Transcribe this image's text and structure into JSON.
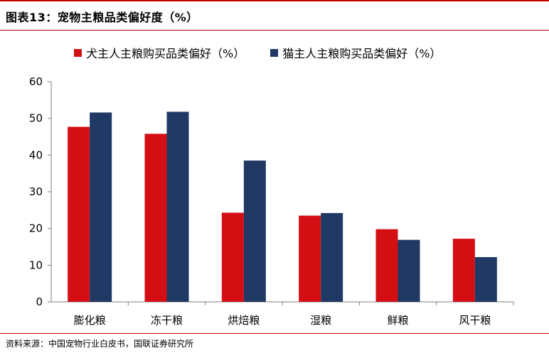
{
  "figure_title": "图表13：宠物主粮品类偏好度（%）",
  "source": "资料来源：中国宠物行业白皮书，国联证券研究所",
  "colors": {
    "dog": "#d40f14",
    "cat": "#1f3864",
    "accent_rule": "#c00000"
  },
  "chart_data": {
    "type": "bar",
    "title": "",
    "xlabel": "",
    "ylabel": "",
    "ylim": [
      0,
      60
    ],
    "yticks": [
      0,
      10,
      20,
      30,
      40,
      50,
      60
    ],
    "grid": false,
    "legend_position": "top",
    "categories": [
      "膨化粮",
      "冻干粮",
      "烘焙粮",
      "湿粮",
      "鲜粮",
      "风干粮"
    ],
    "series": [
      {
        "name": "犬主人主粮购买品类偏好（%）",
        "color": "#d40f14",
        "values": [
          47.7,
          45.8,
          24.3,
          23.5,
          19.8,
          17.2
        ]
      },
      {
        "name": "猫主人主粮购买品类偏好（%）",
        "color": "#1f3864",
        "values": [
          51.6,
          51.8,
          38.5,
          24.2,
          16.9,
          12.2
        ]
      }
    ]
  }
}
